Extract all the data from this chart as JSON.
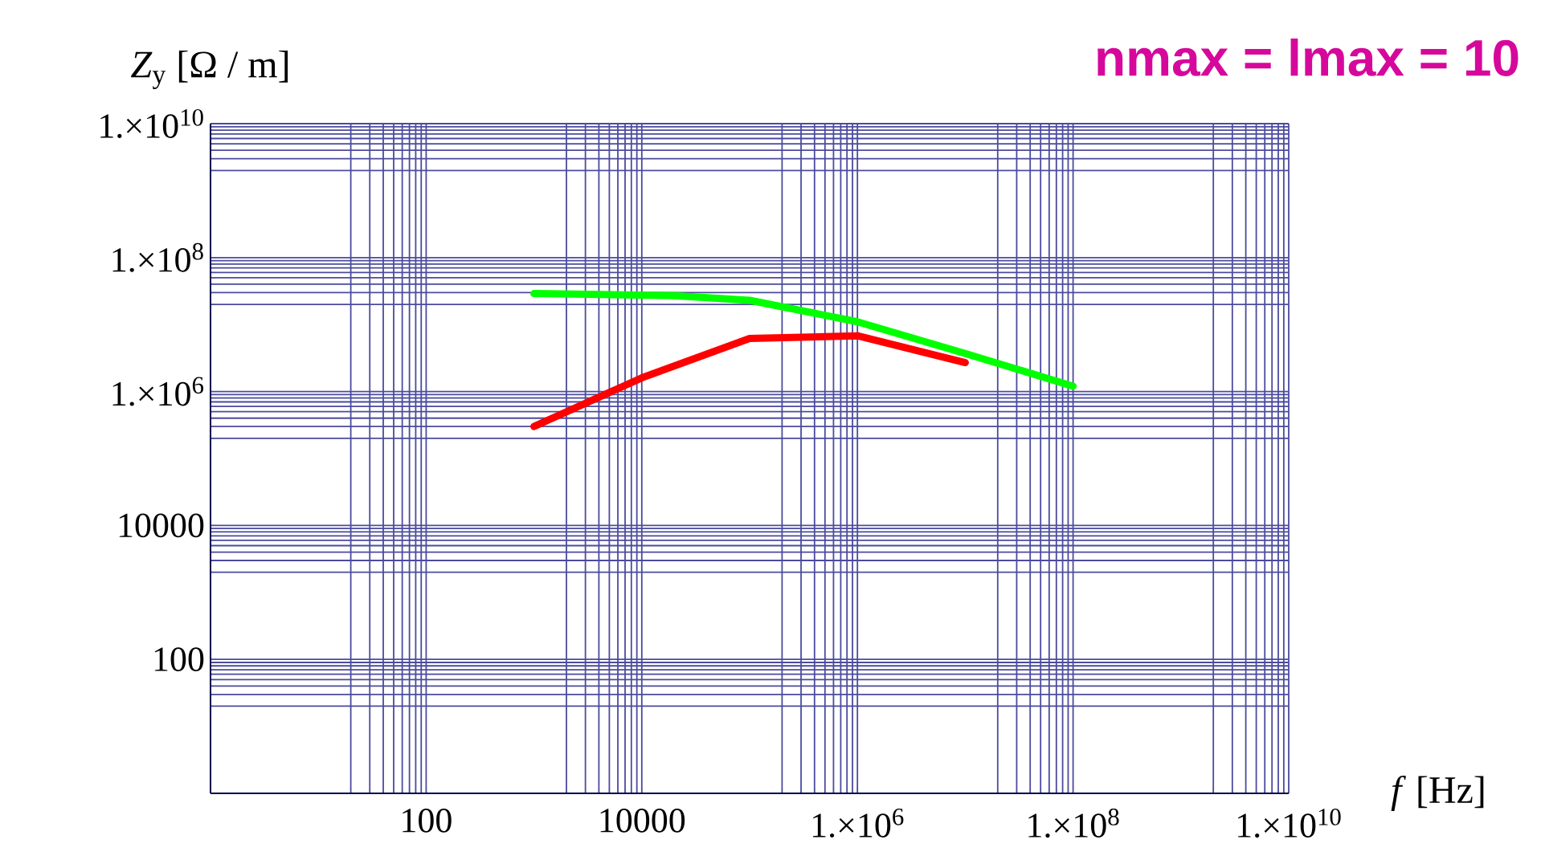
{
  "chart_data": {
    "type": "line",
    "title": "nmax = lmax = 10",
    "xlabel": "*f* [Hz]",
    "ylabel": "*Z*$_{y}$ [Ω / m]",
    "log": "xy",
    "grid": true,
    "xlim": [
      1,
      10000000000.0
    ],
    "ylim": [
      1,
      10000000000.0
    ],
    "xticks": [
      100,
      10000,
      {
        "value": 1000000.0,
        "label": "1.×10$^{6}$"
      },
      {
        "value": 100000000.0,
        "label": "1.×10$^{8}$"
      },
      {
        "value": 10000000000.0,
        "label": "1.×10$^{10}$"
      }
    ],
    "yticks": [
      100,
      10000,
      {
        "value": 1000000.0,
        "label": "1.×10$^{6}$"
      },
      {
        "value": 100000000.0,
        "label": "1.×10$^{8}$"
      },
      {
        "value": 10000000000.0,
        "label": "1.×10$^{10}$"
      }
    ],
    "series": [
      {
        "color": "#00ff00",
        "x": [
          1000,
          20000,
          100000,
          1000000,
          10000000,
          100000000
        ],
        "values": [
          29000000,
          27000000,
          23000000,
          11000000,
          3700000,
          1200000
        ]
      },
      {
        "color": "#ff0000",
        "x": [
          1000,
          10000,
          100000,
          1000000,
          10000000
        ],
        "values": [
          300000,
          1600000,
          6200000,
          6800000,
          2700000
        ]
      }
    ]
  }
}
